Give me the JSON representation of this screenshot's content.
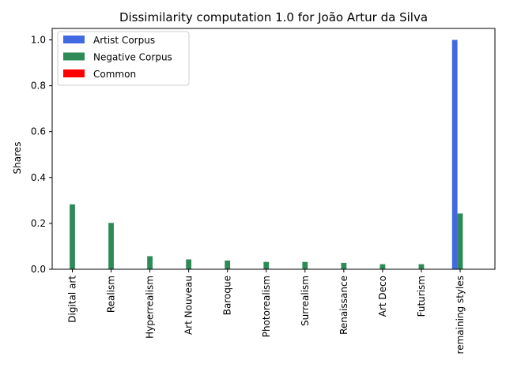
{
  "chart_data": {
    "type": "bar",
    "title": "Dissimilarity computation 1.0 for João Artur da Silva",
    "xlabel": "",
    "ylabel": "Shares",
    "ylim": [
      0,
      1.05
    ],
    "yticks": [
      "0.0",
      "0.2",
      "0.4",
      "0.6",
      "0.8",
      "1.0"
    ],
    "ytick_values": [
      0,
      0.2,
      0.4,
      0.6,
      0.8,
      1.0
    ],
    "grid": false,
    "legend_position": "top-left",
    "categories": [
      "Digital art",
      "Realism",
      "Hyperrealism",
      "Art Nouveau",
      "Baroque",
      "Photorealism",
      "Surrealism",
      "Renaissance",
      "Art Deco",
      "Futurism",
      "remaining styles"
    ],
    "series": [
      {
        "name": "Artist Corpus",
        "color": "#4169e1",
        "values": [
          0,
          0,
          0,
          0,
          0,
          0,
          0,
          0,
          0,
          0,
          1.0
        ]
      },
      {
        "name": "Negative Corpus",
        "color": "#2e8b57",
        "values": [
          0.283,
          0.202,
          0.057,
          0.043,
          0.038,
          0.032,
          0.032,
          0.028,
          0.022,
          0.022,
          0.243
        ]
      },
      {
        "name": "Common",
        "color": "#ff0000",
        "values": [
          0,
          0,
          0,
          0,
          0,
          0,
          0,
          0,
          0,
          0,
          0
        ]
      }
    ]
  }
}
